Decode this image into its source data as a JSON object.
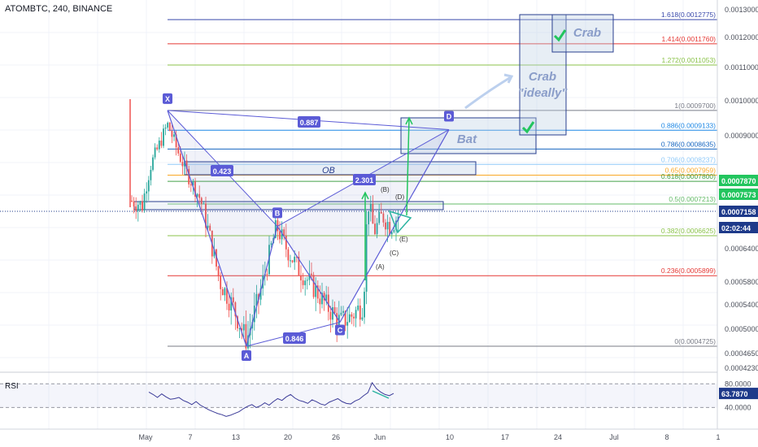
{
  "header": {
    "title": "ATOMBTC, 240, BINANCE"
  },
  "colors": {
    "up": "#26a69a",
    "down": "#ef5350",
    "pattern": "#5b5bd6",
    "box_fill": "rgba(187,205,227,0.35)",
    "box_stroke": "#2a3f8f",
    "green": "#22c55e",
    "rsi_line": "#3b3b98",
    "price_tag": "#1e3a8a"
  },
  "chart_data": [
    {
      "type": "candlestick",
      "title": "ATOMBTC, 240, BINANCE",
      "y_axis": {
        "ticks": [
          "0.0013000",
          "0.0012000",
          "0.0011000",
          "0.0010000",
          "0.0009000",
          "0.0007870",
          "0.0007573",
          "0.0007158",
          "0.0006400",
          "0.0005800",
          "0.0005400",
          "0.0005000",
          "0.0004650",
          "0.0004230"
        ],
        "range": [
          0.00042,
          0.00131
        ]
      },
      "x_axis": {
        "ticks": [
          "May",
          "7",
          "13",
          "20",
          "26",
          "Jun",
          "10",
          "17",
          "24",
          "Jul",
          "8",
          "1"
        ]
      },
      "price_tags": [
        {
          "label": "0.0007870",
          "color": "#22c55e"
        },
        {
          "label": "0.0007573",
          "color": "#22c55e"
        },
        {
          "label": "0.0007158",
          "color": "#1e3a8a"
        },
        {
          "label": "02:02:44",
          "color": "#1e3a8a"
        }
      ],
      "fib_levels": [
        {
          "label": "1.618(0.0012775)",
          "price": 0.0012775,
          "color": "#3949ab"
        },
        {
          "label": "1.414(0.0011760)",
          "price": 0.001176,
          "color": "#e53935"
        },
        {
          "label": "1.272(0.0011053)",
          "price": 0.0011053,
          "color": "#8bc34a"
        },
        {
          "label": "1(0.0009700)",
          "price": 0.00097,
          "color": "#787b86"
        },
        {
          "label": "0.886(0.0009133)",
          "price": 0.0009133,
          "color": "#1e88e5"
        },
        {
          "label": "0.786(0.0008635)",
          "price": 0.0008635,
          "color": "#1565c0"
        },
        {
          "label": "0.706(0.0008237)",
          "price": 0.0008237,
          "color": "#90caf9"
        },
        {
          "label": "0.65(0.0007959)",
          "price": 0.0007959,
          "color": "#f9a825"
        },
        {
          "label": "0.618(0.0007800)",
          "price": 0.00078,
          "color": "#43a047"
        },
        {
          "label": "0.5(0.0007213)",
          "price": 0.0007213,
          "color": "#66bb6a"
        },
        {
          "label": "0.382(0.0006625)",
          "price": 0.0006625,
          "color": "#8bc34a"
        },
        {
          "label": "0.236(0.0005899)",
          "price": 0.0005899,
          "color": "#e53935"
        },
        {
          "label": "0(0.0004725)",
          "price": 0.0004725,
          "color": "#787b86"
        }
      ],
      "harmonic_points": [
        {
          "label": "X",
          "price": 0.00097
        },
        {
          "label": "A",
          "price": 0.0004725
        },
        {
          "label": "B",
          "price": 0.00068
        },
        {
          "label": "C",
          "price": 0.00051
        },
        {
          "label": "D",
          "price": 0.000915
        }
      ],
      "ratios": [
        "0.887",
        "0.423",
        "0.846",
        "2.301"
      ],
      "annotations": [
        "OB",
        "Bat",
        "Crab \"ideally\"",
        "Crab",
        "(A)",
        "(B)",
        "(C)",
        "(D)",
        "(E)"
      ],
      "rsi": {
        "label": "RSI",
        "ticks": [
          "80.0000",
          "40.0000"
        ],
        "current": "63.7870",
        "range": [
          20,
          90
        ],
        "values": [
          66,
          62,
          57,
          63,
          58,
          54,
          55,
          57,
          52,
          49,
          45,
          50,
          44,
          40,
          36,
          33,
          30,
          28,
          25,
          27,
          30,
          33,
          38,
          42,
          45,
          40,
          43,
          48,
          44,
          50,
          55,
          52,
          58,
          62,
          56,
          52,
          50,
          47,
          53,
          50,
          46,
          44,
          49,
          52,
          55,
          50,
          47,
          46,
          51,
          54,
          60,
          65,
          82,
          72,
          66,
          62,
          60,
          63.8
        ]
      }
    }
  ]
}
